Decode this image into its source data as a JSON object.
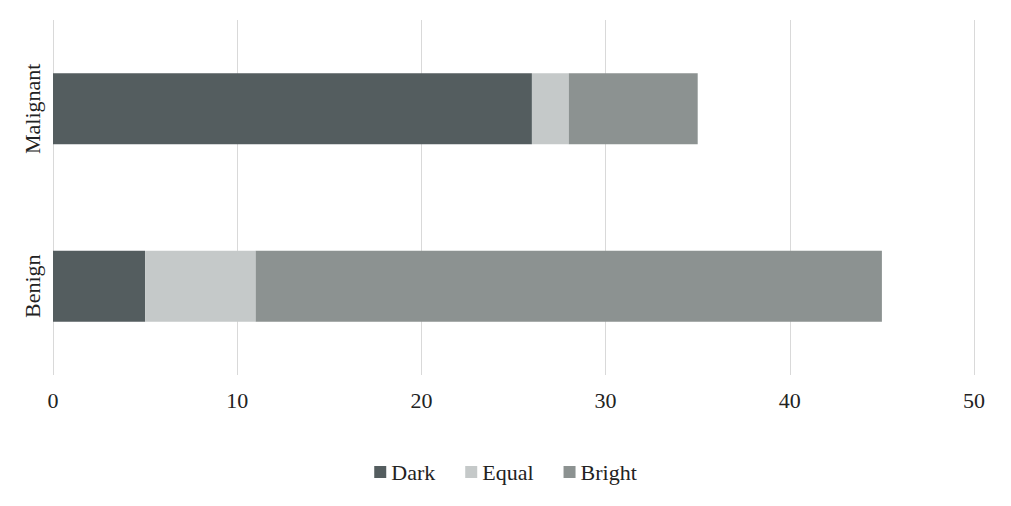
{
  "chart_data": {
    "type": "bar",
    "orientation": "horizontal",
    "stacked": true,
    "categories": [
      "Malignant",
      "Benign"
    ],
    "series": [
      {
        "name": "Dark",
        "color": "#545d5f",
        "values": [
          26,
          5
        ]
      },
      {
        "name": "Equal",
        "color": "#c5c9c9",
        "values": [
          2,
          6
        ]
      },
      {
        "name": "Bright",
        "color": "#8c9291",
        "values": [
          7,
          34
        ]
      }
    ],
    "xlim": [
      0,
      50
    ],
    "xticks": [
      0,
      10,
      20,
      30,
      40,
      50
    ],
    "grid": true,
    "legend": "bottom"
  }
}
